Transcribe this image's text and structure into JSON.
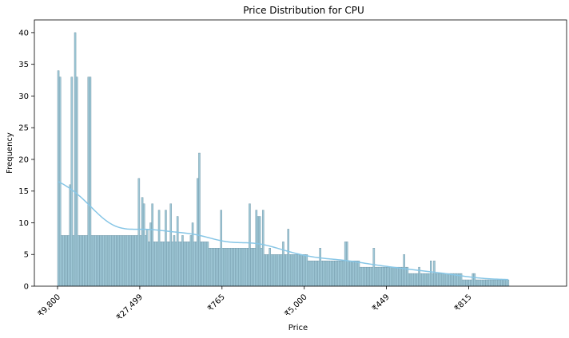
{
  "chart_data": {
    "type": "bar",
    "title": "Price Distribution for CPU",
    "xlabel": "Price",
    "ylabel": "Frequency",
    "ylim": [
      0,
      42
    ],
    "yticks": [
      0,
      5,
      10,
      15,
      20,
      25,
      30,
      35,
      40
    ],
    "xticks": [
      {
        "bin": 0,
        "label": "₹9,800"
      },
      {
        "bin": 49,
        "label": "₹27,499"
      },
      {
        "bin": 98,
        "label": "₹765"
      },
      {
        "bin": 147,
        "label": "₹5,000"
      },
      {
        "bin": 196,
        "label": "₹449"
      },
      {
        "bin": 245,
        "label": "₹815"
      }
    ],
    "bar_color": "#9ec7d6",
    "bar_edge_color": "#6a8fa0",
    "kde_color": "#87c6e6",
    "grid": false,
    "values": [
      34,
      33,
      8,
      8,
      8,
      8,
      8,
      16,
      33,
      8,
      40,
      33,
      8,
      8,
      8,
      8,
      8,
      8,
      33,
      33,
      8,
      8,
      8,
      8,
      8,
      8,
      8,
      8,
      8,
      8,
      8,
      8,
      8,
      8,
      8,
      8,
      8,
      8,
      8,
      8,
      8,
      8,
      8,
      8,
      8,
      8,
      8,
      8,
      17,
      8,
      14,
      13,
      8,
      9,
      7,
      10,
      13,
      7,
      7,
      7,
      12,
      7,
      7,
      7,
      12,
      7,
      7,
      13,
      7,
      8,
      7,
      11,
      7,
      7,
      8,
      7,
      7,
      7,
      7,
      8,
      10,
      7,
      7,
      17,
      21,
      7,
      7,
      7,
      7,
      7,
      6,
      6,
      6,
      6,
      6,
      6,
      6,
      12,
      6,
      6,
      6,
      6,
      6,
      6,
      6,
      6,
      6,
      6,
      6,
      6,
      6,
      6,
      6,
      6,
      13,
      6,
      6,
      6,
      12,
      11,
      11,
      6,
      12,
      5,
      5,
      5,
      6,
      5,
      5,
      5,
      5,
      5,
      5,
      5,
      7,
      5,
      5,
      9,
      5,
      5,
      5,
      5,
      5,
      5,
      5,
      5,
      5,
      5,
      5,
      4,
      4,
      4,
      4,
      4,
      4,
      4,
      6,
      4,
      4,
      4,
      4,
      4,
      4,
      4,
      4,
      4,
      4,
      4,
      4,
      4,
      4,
      7,
      7,
      4,
      4,
      4,
      4,
      4,
      4,
      4,
      3,
      3,
      3,
      3,
      3,
      3,
      3,
      3,
      6,
      3,
      3,
      3,
      3,
      3,
      3,
      3,
      3,
      3,
      3,
      3,
      3,
      3,
      3,
      3,
      3,
      3,
      5,
      3,
      3,
      2,
      2,
      2,
      2,
      2,
      2,
      3,
      2,
      2,
      2,
      2,
      2,
      2,
      4,
      2,
      4,
      2,
      2,
      2,
      2,
      2,
      2,
      2,
      2,
      2,
      2,
      2,
      2,
      2,
      2,
      2,
      2,
      1,
      1,
      1,
      1,
      1,
      1,
      2,
      2,
      1,
      1,
      1,
      1,
      1,
      1,
      1,
      1,
      1,
      1,
      1,
      1,
      1,
      1,
      1,
      1,
      1,
      1,
      1,
      1
    ]
  }
}
